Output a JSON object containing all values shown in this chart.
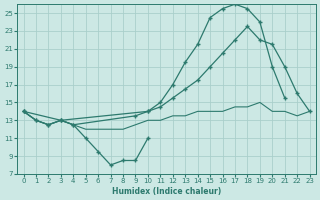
{
  "xlabel": "Humidex (Indice chaleur)",
  "background_color": "#cce8e4",
  "grid_color": "#aacfcb",
  "line_color": "#2d7a6e",
  "xlim": [
    -0.5,
    23.5
  ],
  "ylim": [
    7,
    26
  ],
  "yticks": [
    7,
    9,
    11,
    13,
    15,
    17,
    19,
    21,
    23,
    25
  ],
  "xticks": [
    0,
    1,
    2,
    3,
    4,
    5,
    6,
    7,
    8,
    9,
    10,
    11,
    12,
    13,
    14,
    15,
    16,
    17,
    18,
    19,
    20,
    21,
    22,
    23
  ],
  "line_dip_x": [
    0,
    1,
    2,
    3,
    4,
    5,
    6,
    7,
    8,
    9,
    10
  ],
  "line_dip_y": [
    14,
    13,
    12.5,
    13,
    12.5,
    11,
    9.5,
    8,
    8.5,
    8.5,
    11
  ],
  "line_steep_x": [
    0,
    1,
    2,
    3,
    4,
    9,
    10,
    11,
    12,
    13,
    14,
    15,
    16,
    17,
    18,
    19,
    20,
    21
  ],
  "line_steep_y": [
    14,
    13,
    12.5,
    13,
    12.5,
    13.5,
    14,
    15,
    17,
    19.5,
    21.5,
    24.5,
    25.5,
    26,
    25.5,
    24,
    19,
    15.5
  ],
  "line_diag_x": [
    0,
    3,
    10,
    11,
    12,
    13,
    14,
    15,
    16,
    17,
    18,
    19,
    20,
    21,
    22,
    23
  ],
  "line_diag_y": [
    14,
    13,
    14,
    14.5,
    15.5,
    16.5,
    17.5,
    19,
    20.5,
    22,
    23.5,
    22,
    21.5,
    19,
    16,
    14
  ],
  "line_flat_x": [
    0,
    1,
    2,
    3,
    4,
    5,
    6,
    7,
    8,
    9,
    10,
    11,
    12,
    13,
    14,
    15,
    16,
    17,
    18,
    19,
    20,
    21,
    22,
    23
  ],
  "line_flat_y": [
    14,
    13,
    12.5,
    13,
    12.5,
    12,
    12,
    12,
    12,
    12.5,
    13,
    13,
    13.5,
    13.5,
    14,
    14,
    14,
    14.5,
    14.5,
    15,
    14,
    14,
    13.5,
    14
  ]
}
